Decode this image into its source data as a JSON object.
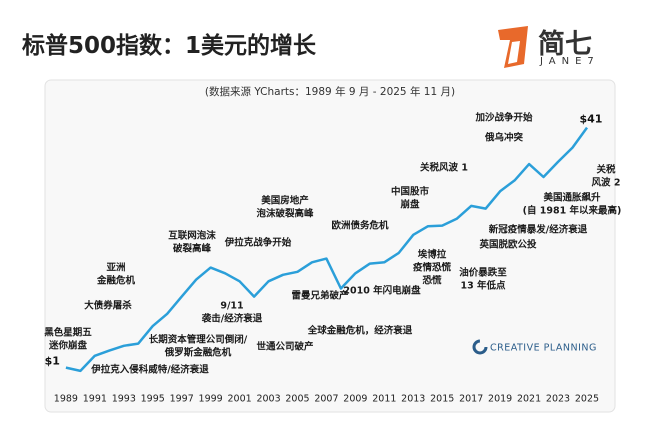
{
  "header": {
    "title": "标普500指数：1美元的增长",
    "logo_text": "简七",
    "logo_subtext": "JANE7"
  },
  "chart_data": {
    "type": "line",
    "subtitle": "(数据来源 YCharts：1989 年 9 月 - 2025 年 11 月)",
    "source_brand": "CREATIVE PLANNING",
    "x": [
      1989,
      1990,
      1991,
      1992,
      1993,
      1994,
      1995,
      1996,
      1997,
      1998,
      1999,
      2000,
      2001,
      2002,
      2003,
      2004,
      2005,
      2006,
      2007,
      2008,
      2009,
      2010,
      2011,
      2012,
      2013,
      2014,
      2015,
      2016,
      2017,
      2018,
      2019,
      2020,
      2021,
      2022,
      2023,
      2024,
      2025
    ],
    "series": [
      {
        "color": "#2b9fd9",
        "values": [
          1,
          0.95,
          1.2,
          1.3,
          1.4,
          1.45,
          1.9,
          2.3,
          3.0,
          3.9,
          4.7,
          4.3,
          3.8,
          3.0,
          3.8,
          4.2,
          4.4,
          5.1,
          5.4,
          3.4,
          4.3,
          5.0,
          5.1,
          5.9,
          7.8,
          8.9,
          9.0,
          10.0,
          12.2,
          11.7,
          15.3,
          18.1,
          23.3,
          19.1,
          24.1,
          30.1,
          41
        ],
        "value_labels": [
          "$1",
          null,
          null,
          null,
          null,
          null,
          null,
          null,
          null,
          null,
          null,
          null,
          null,
          null,
          null,
          null,
          null,
          null,
          null,
          null,
          null,
          null,
          null,
          null,
          null,
          null,
          null,
          null,
          null,
          null,
          null,
          null,
          null,
          null,
          null,
          null,
          "$41"
        ]
      }
    ],
    "xlim": [
      1988.8,
      2025.9
    ],
    "xticks": [
      1989,
      1991,
      1993,
      1995,
      1997,
      1999,
      2001,
      2003,
      2005,
      2007,
      2009,
      2011,
      2013,
      2015,
      2017,
      2019,
      2021,
      2023,
      2025
    ],
    "ylim": [
      0.8,
      60
    ],
    "log_y": true,
    "annotations": [
      [
        "黑色星期五",
        "迷你崩盘"
      ],
      [
        "伊拉克入侵科威特/经济衰退"
      ],
      [
        "大债券屠杀"
      ],
      [
        "亚洲",
        "金融危机"
      ],
      [
        "互联网泡沫",
        "破裂高峰"
      ],
      [
        "伊拉克战争开始"
      ],
      [
        "长期资本管理公司倒闭/",
        "俄罗斯金融危机"
      ],
      [
        "9/11",
        "袭击/经济衰退"
      ],
      [
        "世通公司破产"
      ],
      [
        "美国房地产",
        "泡沫破裂高峰"
      ],
      [
        "雷曼兄弟破产"
      ],
      [
        "全球金融危机，经济衰退"
      ],
      [
        "欧洲债务危机"
      ],
      [
        "2010 年闪电崩盘"
      ],
      [
        "中国股市",
        "崩盘"
      ],
      [
        "埃博拉",
        "疫情恐慌",
        "恐慌"
      ],
      [
        "油价暴跌至",
        "13 年低点"
      ],
      [
        "关税风波 1"
      ],
      [
        "新冠疫情暴发/经济衰退"
      ],
      [
        "英国脱欧公投"
      ],
      [
        "加沙战争开始"
      ],
      [
        "俄乌冲突"
      ],
      [
        "美国通胀飙升",
        "(自 1981 年以来最高)"
      ],
      [
        "关税",
        "风波 2"
      ]
    ]
  }
}
